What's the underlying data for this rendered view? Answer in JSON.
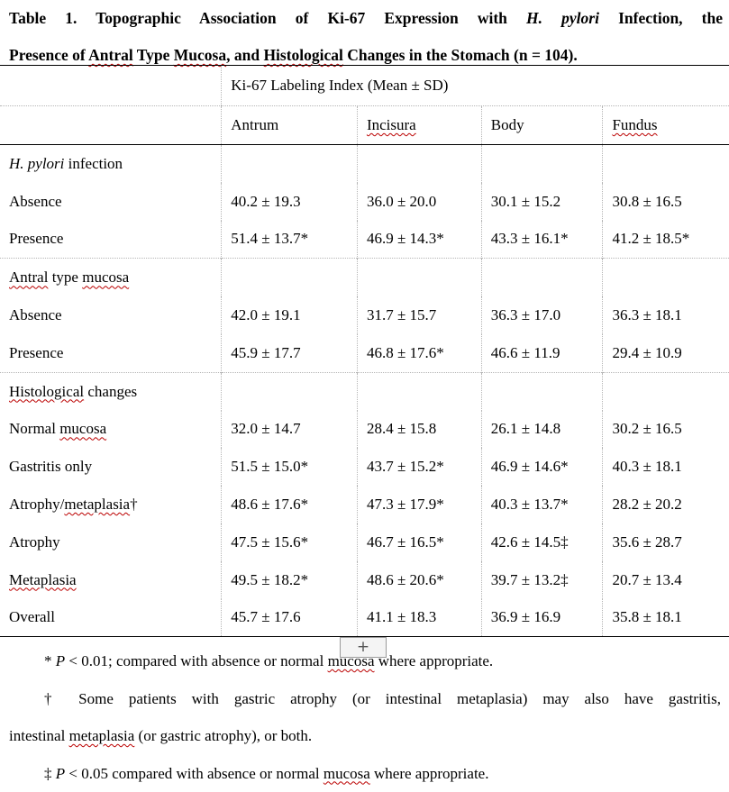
{
  "caption": {
    "line1": "Table 1. Topographic Association of Ki-67 Expression with H. pylori Infection, the",
    "line1_prefix": "Table 1. Topographic Association of Ki-67 Expression with ",
    "line1_italic": "H. pylori",
    "line1_suffix": " Infection, the",
    "line2_a": "Presence of ",
    "line2_b": "Antral",
    "line2_c": " Type ",
    "line2_d": "Mucosa",
    "line2_e": ", and ",
    "line2_f": "Histological",
    "line2_g": " Changes in the Stomach (n = 104)."
  },
  "table": {
    "super_header": "Ki-67 Labeling Index (Mean ± SD)",
    "columns": [
      "Antrum",
      "Incisura",
      "Body",
      "Fundus"
    ],
    "sections": [
      {
        "title_italic": "H. pylori",
        "title_rest": " infection",
        "rows": [
          {
            "label": "Absence",
            "values": [
              "40.2 ± 19.3",
              "36.0 ± 20.0",
              "30.1 ± 15.2",
              "30.8 ± 16.5"
            ]
          },
          {
            "label": "Presence",
            "values": [
              "51.4 ± 13.7*",
              "46.9 ± 14.3*",
              "43.3 ± 16.1*",
              "41.2 ± 18.5*"
            ]
          }
        ]
      },
      {
        "title_a": "Antral",
        "title_b": " type ",
        "title_c": "mucosa",
        "rows": [
          {
            "label": "Absence",
            "values": [
              "42.0 ± 19.1",
              "31.7 ± 15.7",
              "36.3 ± 17.0",
              "36.3 ± 18.1"
            ]
          },
          {
            "label": "Presence",
            "values": [
              "45.9 ± 17.7",
              "46.8 ± 17.6*",
              "46.6 ± 11.9",
              "29.4 ± 10.9"
            ]
          }
        ]
      },
      {
        "title_a": "Histological",
        "title_b": " changes",
        "rows": [
          {
            "label_a": "Normal ",
            "label_b": "mucosa",
            "values": [
              "32.0 ± 14.7",
              "28.4 ± 15.8",
              "26.1 ± 14.8",
              "30.2 ± 16.5"
            ]
          },
          {
            "label": "Gastritis only",
            "values": [
              "51.5 ± 15.0*",
              "43.7 ± 15.2*",
              "46.9 ± 14.6*",
              "40.3 ± 18.1"
            ]
          },
          {
            "label_a": "Atrophy/",
            "label_b": "metaplasia",
            "label_c": "†",
            "values": [
              "48.6 ± 17.6*",
              "47.3 ± 17.9*",
              "40.3 ± 13.7*",
              "28.2 ± 20.2"
            ]
          },
          {
            "label": "Atrophy",
            "values": [
              "47.5 ± 15.6*",
              "46.7 ± 16.5*",
              "42.6 ± 14.5‡",
              "35.6 ± 28.7"
            ]
          },
          {
            "label": "Metaplasia",
            "values": [
              "49.5 ± 18.2*",
              "48.6 ± 20.6*",
              "39.7 ± 13.2‡",
              "20.7 ± 13.4"
            ]
          },
          {
            "label": "Overall",
            "values": [
              "45.7 ± 17.6",
              "41.1 ± 18.3",
              "36.9 ± 16.9",
              "35.8 ± 18.1"
            ]
          }
        ]
      }
    ]
  },
  "overlay": {
    "add_button_label": "+"
  },
  "notes": {
    "n1_a": "* ",
    "n1_p": "P",
    "n1_b": " < 0.01; compared with absence or normal ",
    "n1_c": "mucosa",
    "n1_d": " where appropriate.",
    "n2_a": "† Some patients with gastric atrophy (or intestinal metaplasia) may also have gastritis,",
    "n2_b_a": "intestinal ",
    "n2_b_b": "metaplasia",
    "n2_b_c": " (or gastric atrophy), or both.",
    "n3_a": "‡ ",
    "n3_p": "P",
    "n3_b": " < 0.05 compared with absence or normal ",
    "n3_c": "mucosa",
    "n3_d": " where appropriate."
  }
}
